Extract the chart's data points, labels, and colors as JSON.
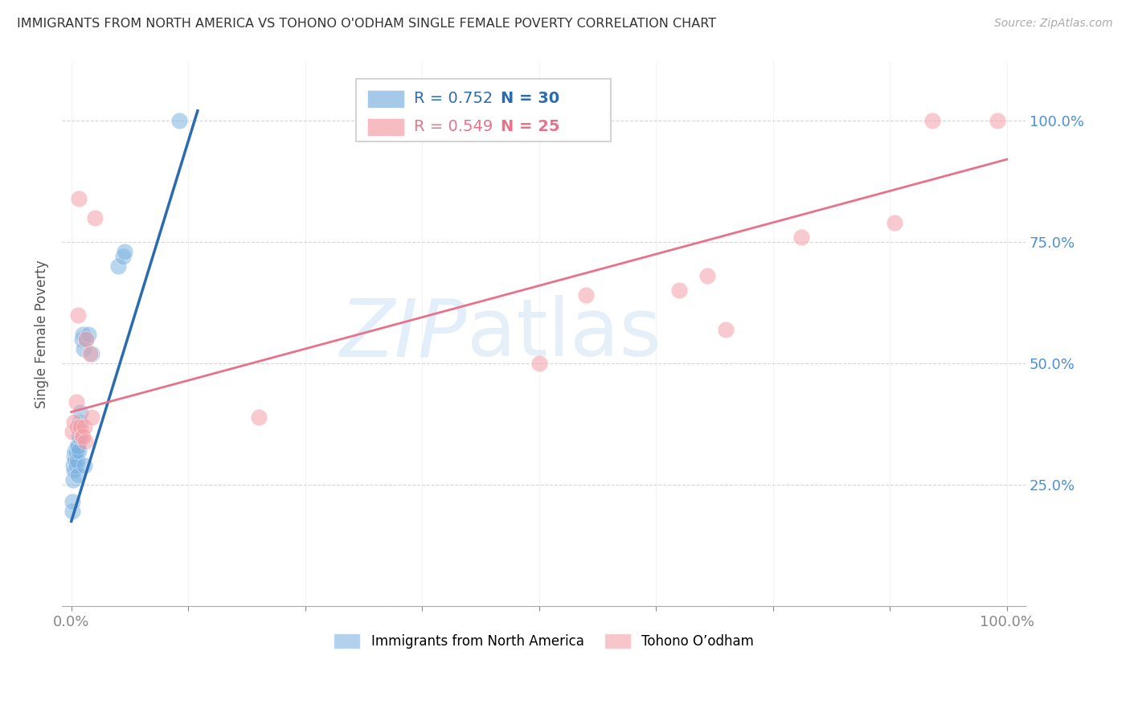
{
  "title": "IMMIGRANTS FROM NORTH AMERICA VS TOHONO O'ODHAM SINGLE FEMALE POVERTY CORRELATION CHART",
  "source": "Source: ZipAtlas.com",
  "ylabel": "Single Female Poverty",
  "legend_blue_label": "Immigrants from North America",
  "legend_pink_label": "Tohono O’odham",
  "blue_R": 0.752,
  "blue_N": 30,
  "pink_R": 0.549,
  "pink_N": 25,
  "blue_points_x": [
    0.001,
    0.001,
    0.002,
    0.002,
    0.003,
    0.003,
    0.004,
    0.004,
    0.005,
    0.005,
    0.006,
    0.006,
    0.007,
    0.007,
    0.008,
    0.008,
    0.009,
    0.009,
    0.01,
    0.011,
    0.012,
    0.013,
    0.014,
    0.016,
    0.018,
    0.022,
    0.05,
    0.055,
    0.057,
    0.115
  ],
  "blue_points_y": [
    0.195,
    0.215,
    0.26,
    0.29,
    0.28,
    0.31,
    0.3,
    0.32,
    0.29,
    0.32,
    0.3,
    0.33,
    0.33,
    0.27,
    0.35,
    0.32,
    0.35,
    0.38,
    0.4,
    0.55,
    0.56,
    0.53,
    0.29,
    0.55,
    0.56,
    0.52,
    0.7,
    0.72,
    0.73,
    1.0
  ],
  "pink_points_x": [
    0.001,
    0.003,
    0.005,
    0.006,
    0.007,
    0.008,
    0.01,
    0.011,
    0.012,
    0.014,
    0.015,
    0.016,
    0.02,
    0.022,
    0.025,
    0.2,
    0.5,
    0.55,
    0.65,
    0.68,
    0.7,
    0.78,
    0.88,
    0.92,
    0.99
  ],
  "pink_points_y": [
    0.36,
    0.38,
    0.42,
    0.37,
    0.6,
    0.84,
    0.37,
    0.35,
    0.35,
    0.37,
    0.34,
    0.55,
    0.52,
    0.39,
    0.8,
    0.39,
    0.5,
    0.64,
    0.65,
    0.68,
    0.57,
    0.76,
    0.79,
    1.0,
    1.0
  ],
  "blue_line_x": [
    0.0,
    0.135
  ],
  "blue_line_y": [
    0.175,
    1.02
  ],
  "pink_line_x": [
    0.0,
    1.0
  ],
  "pink_line_y": [
    0.4,
    0.92
  ],
  "xlim": [
    -0.01,
    1.02
  ],
  "ylim": [
    0.0,
    1.12
  ],
  "yticks": [
    0.0,
    0.25,
    0.5,
    0.75,
    1.0
  ],
  "ytick_labels_right": [
    "",
    "25.0%",
    "50.0%",
    "75.0%",
    "100.0%"
  ],
  "xticks": [
    0.0,
    0.125,
    0.25,
    0.375,
    0.5,
    0.625,
    0.75,
    0.875,
    1.0
  ],
  "xtick_labels": [
    "0.0%",
    "",
    "",
    "",
    "",
    "",
    "",
    "",
    "100.0%"
  ],
  "watermark_zip": "ZIP",
  "watermark_atlas": "atlas",
  "blue_color": "#7EB3E0",
  "pink_color": "#F4A0A8",
  "blue_line_color": "#2B6CB0",
  "pink_line_color": "#E8728A",
  "title_color": "#333333",
  "right_ytick_color": "#4A90D9",
  "legend_border_color": "#CCCCCC",
  "watermark_zip_color": "#C5D8EE",
  "watermark_atlas_color": "#C5D8EE"
}
